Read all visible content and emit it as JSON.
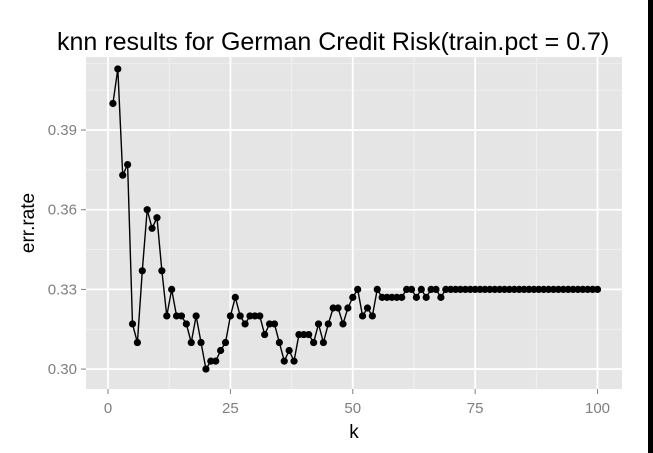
{
  "chart_data": {
    "type": "line",
    "title": "knn results for German Credit Risk(train.pct = 0.7)",
    "xlabel": "k",
    "ylabel": "err.rate",
    "xlim": [
      -4.5,
      105
    ],
    "ylim": [
      0.2925,
      0.4175
    ],
    "x_ticks": [
      0,
      25,
      50,
      75,
      100
    ],
    "y_ticks": [
      0.3,
      0.33,
      0.36,
      0.39
    ],
    "y_tick_labels": [
      "0.30",
      "0.33",
      "0.36",
      "0.39"
    ],
    "grid": true,
    "legend": "none",
    "colors": {
      "panel": "#e5e5e5",
      "grid": "#ffffff",
      "line": "#000000",
      "tick_text": "#7f7f7f"
    },
    "series": [
      {
        "x": [
          1,
          2,
          3,
          4,
          5,
          6,
          7,
          8,
          9,
          10,
          11,
          12,
          13,
          14,
          15,
          16,
          17,
          18,
          19,
          20,
          21,
          22,
          23,
          24,
          25,
          26,
          27,
          28,
          29,
          30,
          31,
          32,
          33,
          34,
          35,
          36,
          37,
          38,
          39,
          40,
          41,
          42,
          43,
          44,
          45,
          46,
          47,
          48,
          49,
          50,
          51,
          52,
          53,
          54,
          55,
          56,
          57,
          58,
          59,
          60,
          61,
          62,
          63,
          64,
          65,
          66,
          67,
          68,
          69,
          70,
          71,
          72,
          73,
          74,
          75,
          76,
          77,
          78,
          79,
          80,
          81,
          82,
          83,
          84,
          85,
          86,
          87,
          88,
          89,
          90,
          91,
          92,
          93,
          94,
          95,
          96,
          97,
          98,
          99,
          100
        ],
        "y": [
          0.4,
          0.413,
          0.373,
          0.377,
          0.317,
          0.31,
          0.337,
          0.36,
          0.353,
          0.357,
          0.337,
          0.32,
          0.33,
          0.32,
          0.32,
          0.317,
          0.31,
          0.32,
          0.31,
          0.3,
          0.303,
          0.303,
          0.307,
          0.31,
          0.32,
          0.327,
          0.32,
          0.317,
          0.32,
          0.32,
          0.32,
          0.313,
          0.317,
          0.317,
          0.31,
          0.303,
          0.307,
          0.303,
          0.313,
          0.313,
          0.313,
          0.31,
          0.317,
          0.31,
          0.317,
          0.323,
          0.323,
          0.317,
          0.323,
          0.327,
          0.33,
          0.32,
          0.323,
          0.32,
          0.33,
          0.327,
          0.327,
          0.327,
          0.327,
          0.327,
          0.33,
          0.33,
          0.327,
          0.33,
          0.327,
          0.33,
          0.33,
          0.327,
          0.33,
          0.33,
          0.33,
          0.33,
          0.33,
          0.33,
          0.33,
          0.33,
          0.33,
          0.33,
          0.33,
          0.33,
          0.33,
          0.33,
          0.33,
          0.33,
          0.33,
          0.33,
          0.33,
          0.33,
          0.33,
          0.33,
          0.33,
          0.33,
          0.33,
          0.33,
          0.33,
          0.33,
          0.33,
          0.33,
          0.33,
          0.33
        ]
      }
    ]
  }
}
